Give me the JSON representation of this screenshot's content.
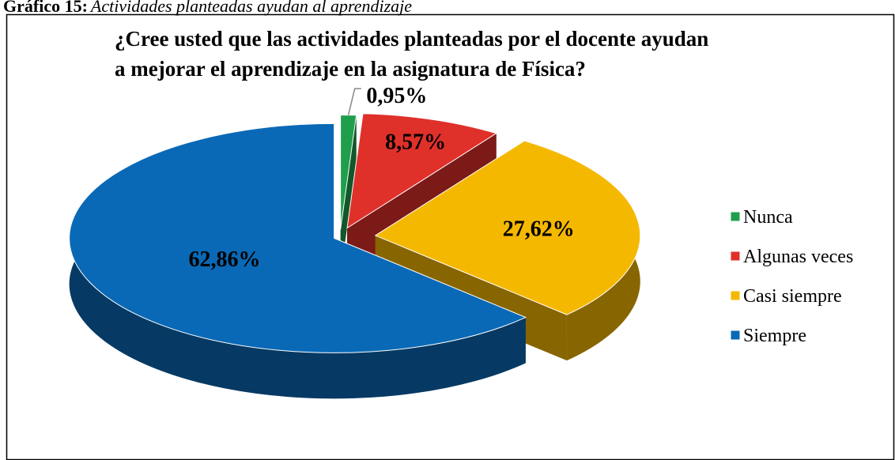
{
  "caption": {
    "label": "Gráfico 15:",
    "text": "Actividades planteadas ayudan al aprendizaje"
  },
  "chart_data": {
    "type": "pie",
    "title": [
      "¿Cree usted que las actividades planteadas por el docente ayudan",
      "a mejorar el aprendizaje en la asignatura de Física?"
    ],
    "categories": [
      "Nunca",
      "Algunas veces",
      "Casi siempre",
      "Siempre"
    ],
    "values": [
      0.95,
      8.57,
      27.62,
      62.86
    ],
    "value_labels": [
      "0,95%",
      "8,57%",
      "27,62%",
      "62,86%"
    ],
    "colors": [
      "#1f9e4c",
      "#e0302a",
      "#f5b800",
      "#0a69b6"
    ],
    "legend": "right"
  }
}
